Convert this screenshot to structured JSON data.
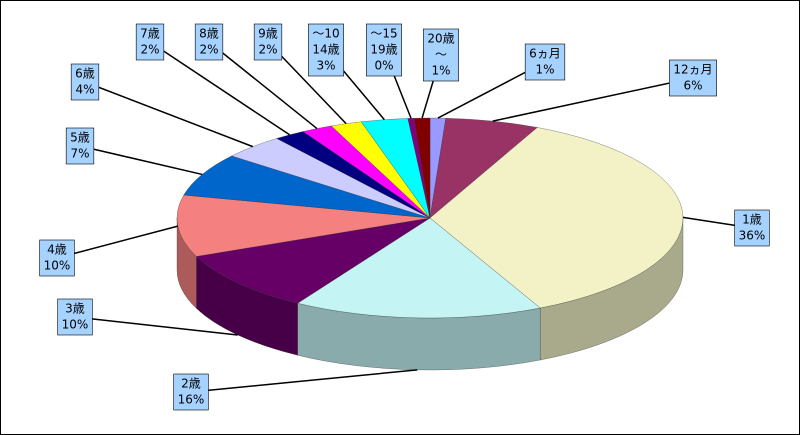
{
  "chart_data": {
    "type": "pie3d",
    "categories": [
      [
        "6ヵ月"
      ],
      [
        "12ヵ月"
      ],
      [
        "1歳"
      ],
      [
        "2歳"
      ],
      [
        "3歳"
      ],
      [
        "4歳"
      ],
      [
        "5歳"
      ],
      [
        "6歳"
      ],
      [
        "7歳"
      ],
      [
        "8歳"
      ],
      [
        "9歳"
      ],
      [
        "～10",
        "14歳"
      ],
      [
        "～15",
        "19歳"
      ],
      [
        "20歳",
        "～"
      ]
    ],
    "values": [
      1,
      6,
      36,
      16,
      10,
      10,
      7,
      4,
      2,
      2,
      2,
      3,
      0.4,
      1
    ],
    "value_labels": [
      "1%",
      "6%",
      "36%",
      "16%",
      "10%",
      "10%",
      "7%",
      "4%",
      "2%",
      "2%",
      "2%",
      "3%",
      "0%",
      "1%"
    ],
    "colors": [
      "#9999ff",
      "#993366",
      "#f2f2c6",
      "#c4f4f4",
      "#660066",
      "#f58080",
      "#0066cc",
      "#ccccff",
      "#000080",
      "#ff00ff",
      "#ffff00",
      "#00ffff",
      "#800080",
      "#800000"
    ]
  }
}
